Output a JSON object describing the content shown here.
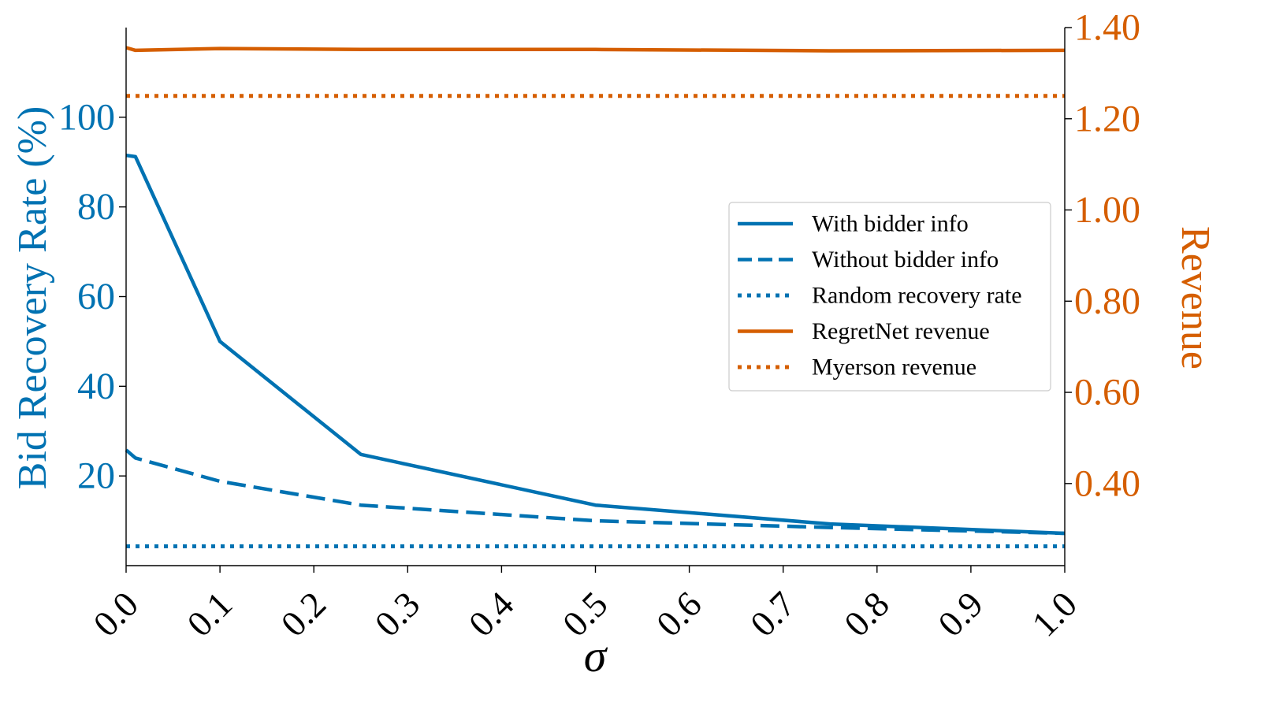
{
  "chart_data": {
    "type": "line",
    "xlabel": "σ",
    "ylabel_left": "Bid Recovery Rate (%)",
    "ylabel_right": "Revenue",
    "xlim": [
      0.0,
      1.0
    ],
    "ylim_left": [
      0,
      120
    ],
    "ylim_right": [
      0.22,
      1.4
    ],
    "x_ticks": [
      "0.0",
      "0.1",
      "0.2",
      "0.3",
      "0.4",
      "0.5",
      "0.6",
      "0.7",
      "0.8",
      "0.9",
      "1.0"
    ],
    "y_left_ticks": [
      20,
      40,
      60,
      80,
      100
    ],
    "y_right_ticks": [
      "0.40",
      "0.60",
      "0.80",
      "1.00",
      "1.20",
      "1.40"
    ],
    "grid": false,
    "legend_position": "center-right",
    "colors": {
      "left_axis": "#0072b2",
      "right_axis": "#d55e00"
    },
    "series": [
      {
        "name": "With bidder info",
        "axis": "left",
        "style": "solid",
        "color": "#0072b2",
        "x": [
          0.0,
          0.01,
          0.1,
          0.25,
          0.5,
          0.75,
          1.0
        ],
        "y": [
          91.5,
          91.2,
          50.0,
          24.8,
          13.5,
          9.3,
          7.2
        ]
      },
      {
        "name": "Without bidder info",
        "axis": "left",
        "style": "dashed",
        "color": "#0072b2",
        "x": [
          0.0,
          0.01,
          0.1,
          0.25,
          0.5,
          0.75,
          1.0
        ],
        "y": [
          25.8,
          24.0,
          18.8,
          13.5,
          10.0,
          8.5,
          7.2
        ]
      },
      {
        "name": "Random recovery rate",
        "axis": "left",
        "style": "dotted",
        "color": "#0072b2",
        "x": [
          0.0,
          1.0
        ],
        "y": [
          4.3,
          4.3
        ]
      },
      {
        "name": "RegretNet revenue",
        "axis": "right",
        "style": "solid",
        "color": "#d55e00",
        "x": [
          0.0,
          0.01,
          0.1,
          0.25,
          0.5,
          0.75,
          1.0
        ],
        "y": [
          1.356,
          1.35,
          1.354,
          1.352,
          1.352,
          1.349,
          1.35
        ]
      },
      {
        "name": "Myerson revenue",
        "axis": "right",
        "style": "dotted",
        "color": "#d55e00",
        "x": [
          0.0,
          1.0
        ],
        "y": [
          1.25,
          1.25
        ]
      }
    ]
  }
}
